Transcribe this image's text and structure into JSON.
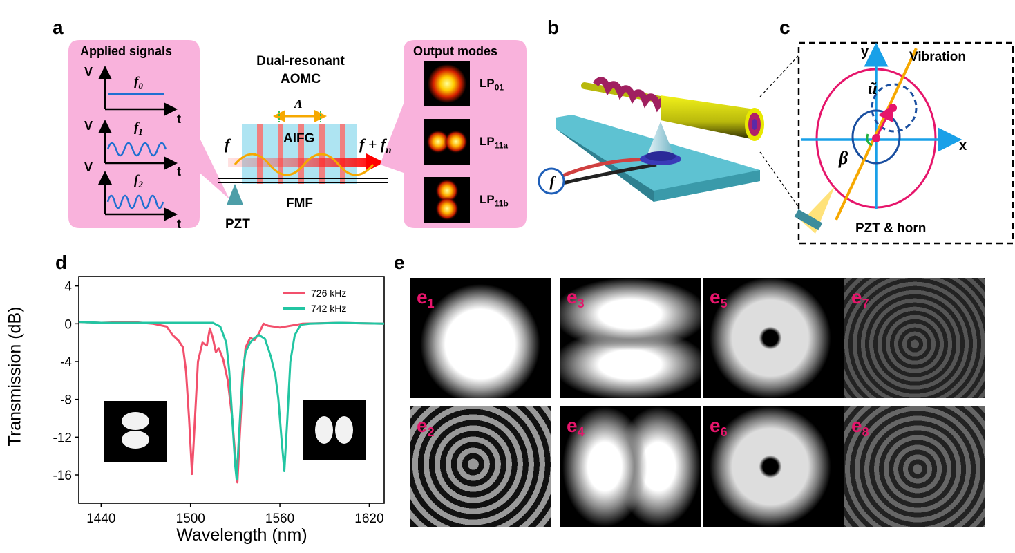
{
  "panels": {
    "a": "a",
    "b": "b",
    "c": "c",
    "d": "d",
    "e": "e"
  },
  "panel_a": {
    "applied_signals_title": "Applied signals",
    "axis_v": "V",
    "axis_t": "t",
    "signals": [
      "f0",
      "f1",
      "f2"
    ],
    "center_title_line1": "Dual-resonant",
    "center_title_line2": "AOMC",
    "period_label": "Λ",
    "grating_label": "AIFG",
    "input_label": "f",
    "output_label": "f + fn",
    "fiber_label": "FMF",
    "pzt_label": "PZT",
    "output_modes_title": "Output modes",
    "modes": [
      "LP01",
      "LP11a",
      "LP11b"
    ]
  },
  "panel_b": {
    "source_label": "f"
  },
  "panel_c": {
    "axis_x": "x",
    "axis_y": "y",
    "vibration_label": "Vibration",
    "displacement_label": "ũ",
    "angle_label": "β",
    "pzt_label": "PZT & horn"
  },
  "chart_data": {
    "type": "line",
    "xlabel": "Wavelength (nm)",
    "ylabel": "Transmission (dB)",
    "xlim": [
      1425,
      1630
    ],
    "ylim": [
      -19,
      5
    ],
    "xticks": [
      1440,
      1500,
      1560,
      1620
    ],
    "yticks": [
      4,
      0,
      -4,
      -8,
      -12,
      -16
    ],
    "legend_position": "top-right",
    "series": [
      {
        "name": "726 kHz",
        "color": "#f2506c",
        "points": [
          [
            1425,
            0.2
          ],
          [
            1440,
            0.1
          ],
          [
            1460,
            0.2
          ],
          [
            1475,
            0
          ],
          [
            1484,
            -0.3
          ],
          [
            1488,
            -1.2
          ],
          [
            1492,
            -1.8
          ],
          [
            1495,
            -2.5
          ],
          [
            1497,
            -5
          ],
          [
            1499,
            -10
          ],
          [
            1501,
            -15.9
          ],
          [
            1503,
            -10
          ],
          [
            1505,
            -4
          ],
          [
            1508,
            -2
          ],
          [
            1511,
            -2.3
          ],
          [
            1513,
            -0.5
          ],
          [
            1515,
            -1.5
          ],
          [
            1517,
            -3
          ],
          [
            1519,
            -2.6
          ],
          [
            1522,
            -3.8
          ],
          [
            1525,
            -6
          ],
          [
            1528,
            -10
          ],
          [
            1530,
            -14
          ],
          [
            1531.5,
            -16.8
          ],
          [
            1533,
            -12
          ],
          [
            1535,
            -6
          ],
          [
            1537,
            -2.5
          ],
          [
            1540,
            -1.5
          ],
          [
            1543,
            -1.7
          ],
          [
            1546,
            -1
          ],
          [
            1549,
            0
          ],
          [
            1552,
            -0.2
          ],
          [
            1560,
            -0.4
          ],
          [
            1575,
            0
          ],
          [
            1600,
            0.1
          ],
          [
            1630,
            0
          ]
        ]
      },
      {
        "name": "742 kHz",
        "color": "#22c5a2",
        "points": [
          [
            1425,
            0.2
          ],
          [
            1440,
            0.1
          ],
          [
            1460,
            0.1
          ],
          [
            1480,
            0.1
          ],
          [
            1500,
            0.1
          ],
          [
            1515,
            0.1
          ],
          [
            1520,
            -0.3
          ],
          [
            1524,
            -2
          ],
          [
            1526,
            -5
          ],
          [
            1528,
            -10
          ],
          [
            1530,
            -15
          ],
          [
            1531,
            -16.5
          ],
          [
            1532.5,
            -12
          ],
          [
            1535,
            -5
          ],
          [
            1537,
            -3
          ],
          [
            1540,
            -2
          ],
          [
            1543,
            -1.5
          ],
          [
            1546,
            -1.2
          ],
          [
            1550,
            -1.6
          ],
          [
            1554,
            -3.5
          ],
          [
            1557,
            -5.5
          ],
          [
            1559,
            -8
          ],
          [
            1561,
            -12
          ],
          [
            1563,
            -15.6
          ],
          [
            1565,
            -10
          ],
          [
            1567,
            -4
          ],
          [
            1570,
            -1.2
          ],
          [
            1574,
            -0.1
          ],
          [
            1580,
            0
          ],
          [
            1600,
            0.1
          ],
          [
            1630,
            0
          ]
        ]
      }
    ]
  },
  "panel_e": {
    "tiles": [
      {
        "prefix": "e",
        "index": "1"
      },
      {
        "prefix": "e",
        "index": "3"
      },
      {
        "prefix": "e",
        "index": "5"
      },
      {
        "prefix": "e",
        "index": "7"
      },
      {
        "prefix": "e",
        "index": "2"
      },
      {
        "prefix": "e",
        "index": "4"
      },
      {
        "prefix": "e",
        "index": "6"
      },
      {
        "prefix": "e",
        "index": "8"
      }
    ]
  }
}
